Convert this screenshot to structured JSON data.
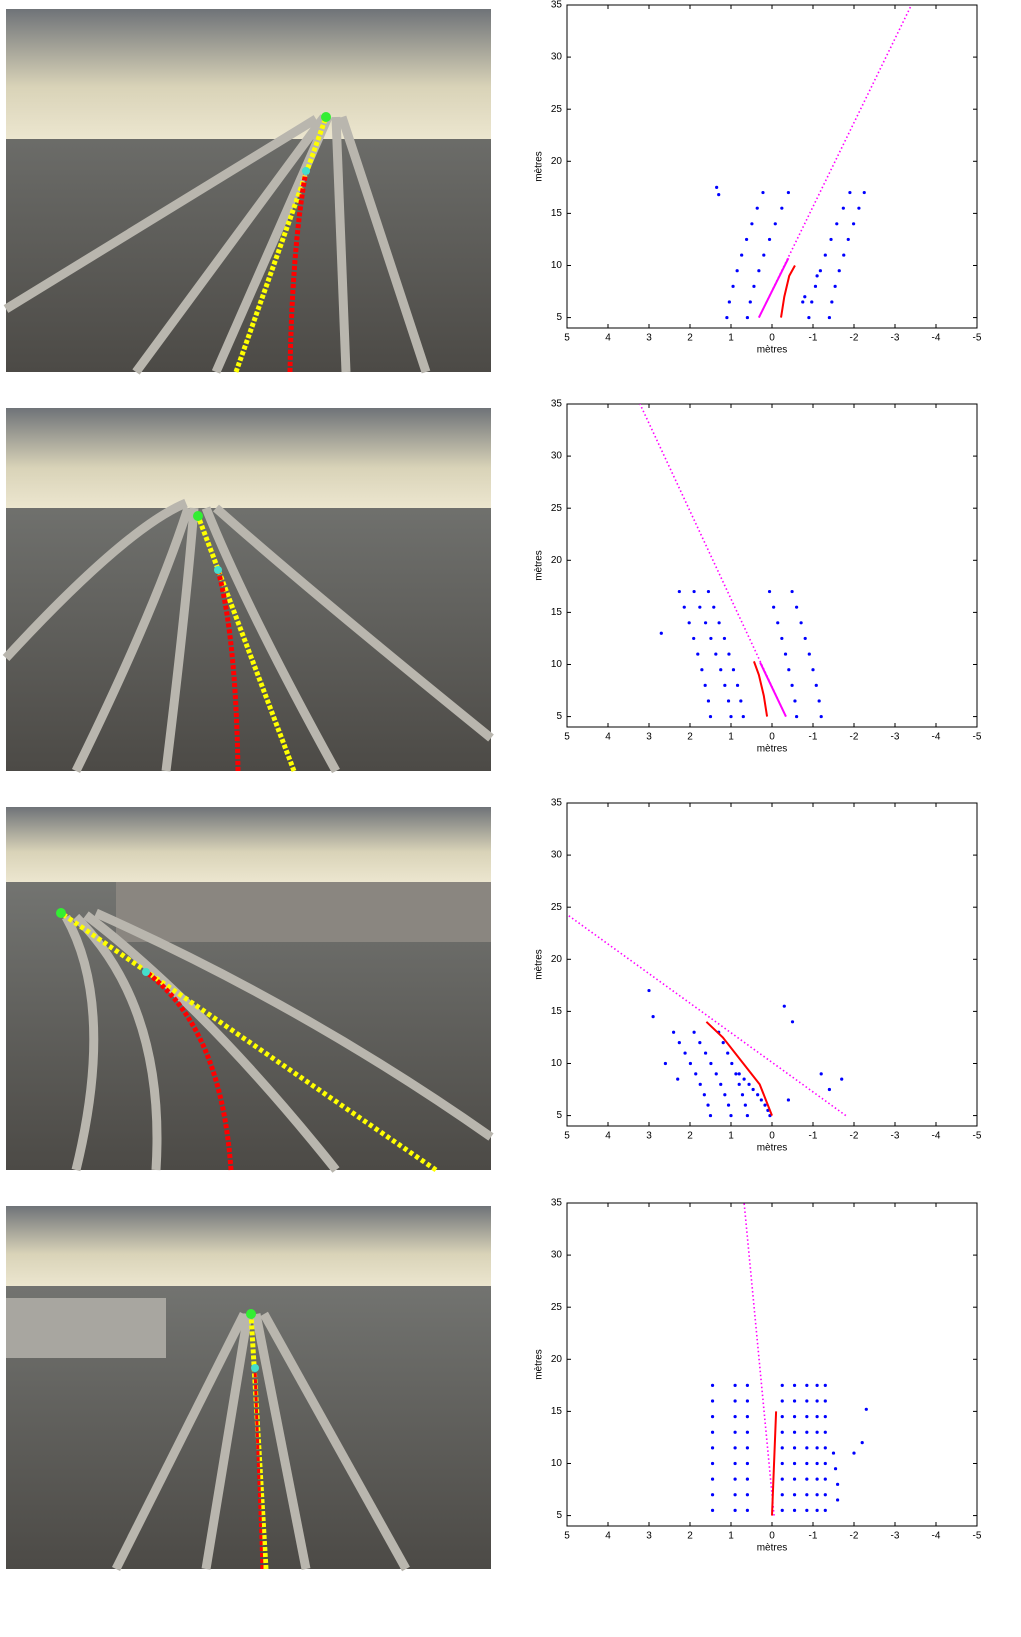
{
  "chart_data": [
    {
      "type": "scatter",
      "xlabel": "mètres",
      "ylabel": "mètres",
      "xlim": [
        5,
        -5
      ],
      "ylim": [
        4,
        35
      ],
      "xticks": [
        5,
        4,
        3,
        2,
        1,
        0,
        -1,
        -2,
        -3,
        -4,
        -5
      ],
      "yticks": [
        5,
        10,
        15,
        20,
        25,
        30,
        35
      ],
      "series": [
        {
          "color": "#0000ff",
          "mode": "markers",
          "y": [
            5,
            6.5,
            8,
            9.5,
            11,
            12.5,
            14,
            15.5,
            17
          ],
          "x": [
            1.1,
            1.04,
            0.95,
            0.85,
            0.74,
            0.62,
            0.49,
            0.36,
            0.22
          ]
        },
        {
          "color": "#0000ff",
          "mode": "markers",
          "y": [
            5,
            6.5,
            8,
            9.5,
            11,
            12.5,
            14,
            15.5,
            17
          ],
          "x": [
            0.6,
            0.53,
            0.44,
            0.32,
            0.2,
            0.06,
            -0.08,
            -0.24,
            -0.4
          ]
        },
        {
          "color": "#0000ff",
          "mode": "markers",
          "y": [
            5,
            6.5,
            8,
            9.5,
            11,
            12.5,
            14,
            15.5,
            17
          ],
          "x": [
            -0.9,
            -0.97,
            -1.06,
            -1.18,
            -1.3,
            -1.44,
            -1.58,
            -1.74,
            -1.9
          ]
        },
        {
          "color": "#0000ff",
          "mode": "markers",
          "y": [
            5,
            6.5,
            8,
            9.5,
            11,
            12.5,
            14,
            15.5,
            17
          ],
          "x": [
            -1.4,
            -1.46,
            -1.54,
            -1.64,
            -1.75,
            -1.86,
            -1.99,
            -2.12,
            -2.25
          ]
        },
        {
          "color": "#0000ff",
          "mode": "markers",
          "y": [
            17.5,
            16.8,
            6.5,
            7,
            9
          ],
          "x": [
            1.35,
            1.3,
            -0.75,
            -0.8,
            -1.1
          ]
        },
        {
          "color": "#ff00ff",
          "mode": "dotted",
          "y": [
            5,
            35
          ],
          "x": [
            0.32,
            -3.4
          ]
        },
        {
          "color": "#ff00ff",
          "mode": "line",
          "y": [
            5,
            10.7
          ],
          "x": [
            0.32,
            -0.4
          ]
        },
        {
          "color": "#ff0000",
          "mode": "line",
          "y": [
            5,
            7,
            9,
            10
          ],
          "x": [
            -0.22,
            -0.3,
            -0.42,
            -0.56
          ]
        }
      ]
    },
    {
      "type": "scatter",
      "xlabel": "mètres",
      "ylabel": "mètres",
      "xlim": [
        5,
        -5
      ],
      "ylim": [
        4,
        35
      ],
      "xticks": [
        5,
        4,
        3,
        2,
        1,
        0,
        -1,
        -2,
        -3,
        -4,
        -5
      ],
      "yticks": [
        5,
        10,
        15,
        20,
        25,
        30,
        35
      ],
      "series": [
        {
          "color": "#0000ff",
          "mode": "markers",
          "y": [
            5,
            6.5,
            8,
            9.5,
            11,
            12.5,
            14,
            15.5,
            17
          ],
          "x": [
            1.5,
            1.55,
            1.63,
            1.71,
            1.81,
            1.91,
            2.02,
            2.14,
            2.26
          ]
        },
        {
          "color": "#0000ff",
          "mode": "markers",
          "y": [
            5,
            6.5,
            8,
            9.5,
            11,
            12.5,
            14,
            15.5,
            17
          ],
          "x": [
            1.0,
            1.06,
            1.15,
            1.25,
            1.37,
            1.49,
            1.62,
            1.76,
            1.9
          ]
        },
        {
          "color": "#0000ff",
          "mode": "markers",
          "y": [
            5,
            6.5,
            8,
            9.5,
            11,
            12.5,
            14,
            15.5,
            17
          ],
          "x": [
            0.7,
            0.76,
            0.84,
            0.94,
            1.05,
            1.16,
            1.29,
            1.42,
            1.55
          ]
        },
        {
          "color": "#0000ff",
          "mode": "markers",
          "y": [
            5,
            6.5,
            8,
            9.5,
            11,
            12.5,
            14,
            15.5,
            17
          ],
          "x": [
            -0.6,
            -0.56,
            -0.49,
            -0.41,
            -0.33,
            -0.24,
            -0.14,
            -0.04,
            0.06
          ]
        },
        {
          "color": "#0000ff",
          "mode": "markers",
          "y": [
            5,
            6.5,
            8,
            9.5,
            11,
            12.5,
            14,
            15.5,
            17
          ],
          "x": [
            -1.2,
            -1.15,
            -1.08,
            -1.0,
            -0.91,
            -0.81,
            -0.71,
            -0.6,
            -0.49
          ]
        },
        {
          "color": "#0000ff",
          "mode": "markers",
          "y": [
            13
          ],
          "x": [
            2.7
          ]
        },
        {
          "color": "#ff00ff",
          "mode": "dotted",
          "y": [
            5,
            35
          ],
          "x": [
            -0.34,
            3.22
          ]
        },
        {
          "color": "#ff00ff",
          "mode": "line",
          "y": [
            5,
            10.2
          ],
          "x": [
            -0.34,
            0.29
          ]
        },
        {
          "color": "#ff0000",
          "mode": "line",
          "y": [
            5,
            7,
            9,
            10.3
          ],
          "x": [
            0.12,
            0.2,
            0.32,
            0.44
          ]
        }
      ]
    },
    {
      "type": "scatter",
      "xlabel": "mètres",
      "ylabel": "mètres",
      "xlim": [
        5,
        -5
      ],
      "ylim": [
        4,
        35
      ],
      "xticks": [
        5,
        4,
        3,
        2,
        1,
        0,
        -1,
        -2,
        -3,
        -4,
        -5
      ],
      "yticks": [
        5,
        10,
        15,
        20,
        25,
        30,
        35
      ],
      "series": [
        {
          "color": "#0000ff",
          "mode": "markers",
          "y": [
            5,
            6,
            7,
            8,
            9,
            10,
            11,
            12,
            13
          ],
          "x": [
            1.5,
            1.56,
            1.65,
            1.75,
            1.86,
            1.99,
            2.12,
            2.26,
            2.4
          ]
        },
        {
          "color": "#0000ff",
          "mode": "markers",
          "y": [
            5,
            6,
            7,
            8,
            9,
            10,
            11,
            12,
            13
          ],
          "x": [
            1.0,
            1.06,
            1.15,
            1.25,
            1.36,
            1.49,
            1.62,
            1.76,
            1.9
          ]
        },
        {
          "color": "#0000ff",
          "mode": "markers",
          "y": [
            5,
            6,
            7,
            8,
            9,
            10,
            11,
            12,
            13
          ],
          "x": [
            0.6,
            0.65,
            0.72,
            0.8,
            0.88,
            0.98,
            1.08,
            1.19,
            1.3
          ]
        },
        {
          "color": "#0000ff",
          "mode": "markers",
          "y": [
            5,
            5.5,
            6,
            6.5,
            7,
            7.5,
            8,
            8.5,
            9
          ],
          "x": [
            0.05,
            0.1,
            0.17,
            0.26,
            0.35,
            0.46,
            0.56,
            0.68,
            0.8
          ]
        },
        {
          "color": "#0000ff",
          "mode": "markers",
          "y": [
            17,
            14.5,
            10,
            8.5,
            15.5,
            14,
            9,
            7.5,
            8.5,
            6.5
          ],
          "x": [
            3.0,
            2.9,
            2.6,
            2.3,
            -0.3,
            -0.5,
            -1.2,
            -1.4,
            -1.7,
            -0.4
          ]
        },
        {
          "color": "#ff00ff",
          "mode": "dotted",
          "y": [
            5,
            24.3
          ],
          "x": [
            -1.8,
            5
          ]
        },
        {
          "color": "#ff0000",
          "mode": "line",
          "y": [
            5,
            8,
            10,
            12.5,
            14
          ],
          "x": [
            0,
            0.3,
            0.7,
            1.2,
            1.6
          ]
        }
      ]
    },
    {
      "type": "scatter",
      "xlabel": "mètres",
      "ylabel": "mètres",
      "xlim": [
        5,
        -5
      ],
      "ylim": [
        4,
        35
      ],
      "xticks": [
        5,
        4,
        3,
        2,
        1,
        0,
        -1,
        -2,
        -3,
        -4,
        -5
      ],
      "yticks": [
        5,
        10,
        15,
        20,
        25,
        30,
        35
      ],
      "series": [
        {
          "color": "#0000ff",
          "mode": "markers",
          "y": [
            5.5,
            7,
            8.5,
            10,
            11.5,
            13,
            14.5,
            16,
            17.5
          ],
          "x": [
            1.45,
            1.45,
            1.45,
            1.45,
            1.45,
            1.45,
            1.45,
            1.45,
            1.45
          ]
        },
        {
          "color": "#0000ff",
          "mode": "markers",
          "y": [
            5.5,
            7,
            8.5,
            10,
            11.5,
            13,
            14.5,
            16,
            17.5
          ],
          "x": [
            0.9,
            0.9,
            0.9,
            0.9,
            0.9,
            0.9,
            0.9,
            0.9,
            0.9
          ]
        },
        {
          "color": "#0000ff",
          "mode": "markers",
          "y": [
            5.5,
            7,
            8.5,
            10,
            11.5,
            13,
            14.5,
            16,
            17.5
          ],
          "x": [
            0.6,
            0.6,
            0.6,
            0.6,
            0.6,
            0.6,
            0.6,
            0.6,
            0.6
          ]
        },
        {
          "color": "#0000ff",
          "mode": "markers",
          "y": [
            5.5,
            7,
            8.5,
            10,
            11.5,
            13,
            14.5,
            16,
            17.5
          ],
          "x": [
            -0.25,
            -0.25,
            -0.25,
            -0.25,
            -0.25,
            -0.25,
            -0.25,
            -0.25,
            -0.25
          ]
        },
        {
          "color": "#0000ff",
          "mode": "markers",
          "y": [
            5.5,
            7,
            8.5,
            10,
            11.5,
            13,
            14.5,
            16,
            17.5
          ],
          "x": [
            -0.55,
            -0.55,
            -0.55,
            -0.55,
            -0.55,
            -0.55,
            -0.55,
            -0.55,
            -0.55
          ]
        },
        {
          "color": "#0000ff",
          "mode": "markers",
          "y": [
            5.5,
            7,
            8.5,
            10,
            11.5,
            13,
            14.5,
            16,
            17.5
          ],
          "x": [
            -0.85,
            -0.85,
            -0.85,
            -0.85,
            -0.85,
            -0.85,
            -0.85,
            -0.85,
            -0.85
          ]
        },
        {
          "color": "#0000ff",
          "mode": "markers",
          "y": [
            5.5,
            7,
            8.5,
            10,
            11.5,
            13,
            14.5,
            16,
            17.5
          ],
          "x": [
            -1.1,
            -1.1,
            -1.1,
            -1.1,
            -1.1,
            -1.1,
            -1.1,
            -1.1,
            -1.1
          ]
        },
        {
          "color": "#0000ff",
          "mode": "markers",
          "y": [
            5.5,
            7,
            8.5,
            10,
            11.5,
            13,
            14.5,
            16,
            17.5
          ],
          "x": [
            -1.3,
            -1.3,
            -1.3,
            -1.3,
            -1.3,
            -1.3,
            -1.3,
            -1.3,
            -1.3
          ]
        },
        {
          "color": "#0000ff",
          "mode": "markers",
          "y": [
            6.5,
            8,
            9.5,
            11,
            15.2,
            12,
            11
          ],
          "x": [
            -1.6,
            -1.6,
            -1.55,
            -1.5,
            -2.3,
            -2.2,
            -2.0
          ]
        },
        {
          "color": "#ff00ff",
          "mode": "dotted",
          "y": [
            5,
            35
          ],
          "x": [
            -0.05,
            0.68
          ]
        },
        {
          "color": "#ff0000",
          "mode": "line",
          "y": [
            5,
            8,
            11,
            15
          ],
          "x": [
            0,
            -0.03,
            -0.06,
            -0.1
          ]
        }
      ]
    }
  ]
}
